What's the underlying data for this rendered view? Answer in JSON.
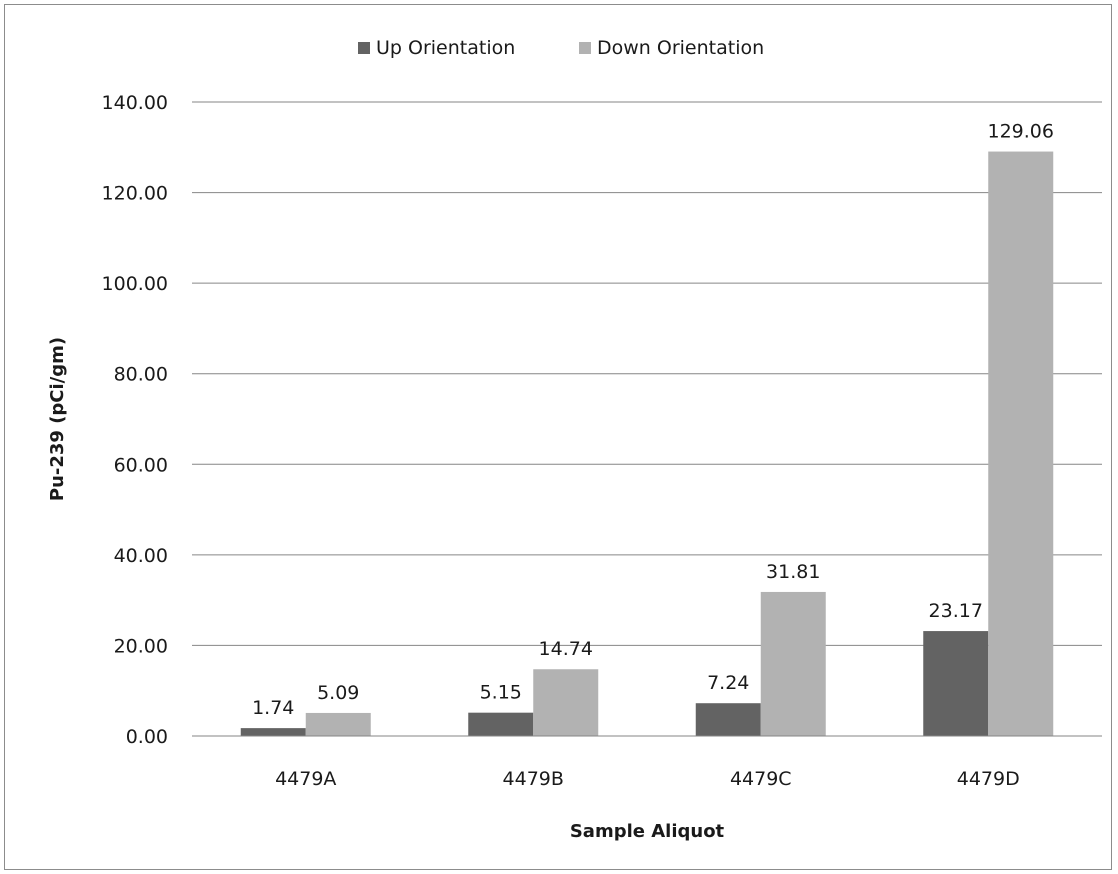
{
  "chart_data": {
    "type": "bar",
    "title": "",
    "xlabel": "Sample Aliquot",
    "ylabel": "Pu-239 (pCi/gm)",
    "categories": [
      "4479A",
      "4479B",
      "4479C",
      "4479D"
    ],
    "series": [
      {
        "name": "Up Orientation",
        "color": "#636363",
        "values": [
          1.74,
          5.15,
          7.24,
          23.17
        ],
        "labels": [
          "1.74",
          "5.15",
          "7.24",
          "23.17"
        ]
      },
      {
        "name": "Down Orientation",
        "color": "#b2b2b2",
        "values": [
          5.09,
          14.74,
          31.81,
          129.06
        ],
        "labels": [
          "5.09",
          "14.74",
          "31.81",
          "129.06"
        ]
      }
    ],
    "ylim": [
      0,
      140
    ],
    "yticks": [
      0,
      20,
      40,
      60,
      80,
      100,
      120,
      140
    ],
    "ytick_labels": [
      "0.00",
      "20.00",
      "40.00",
      "60.00",
      "80.00",
      "100.00",
      "120.00",
      "140.00"
    ],
    "grid": true,
    "legend_position": "top-center"
  }
}
